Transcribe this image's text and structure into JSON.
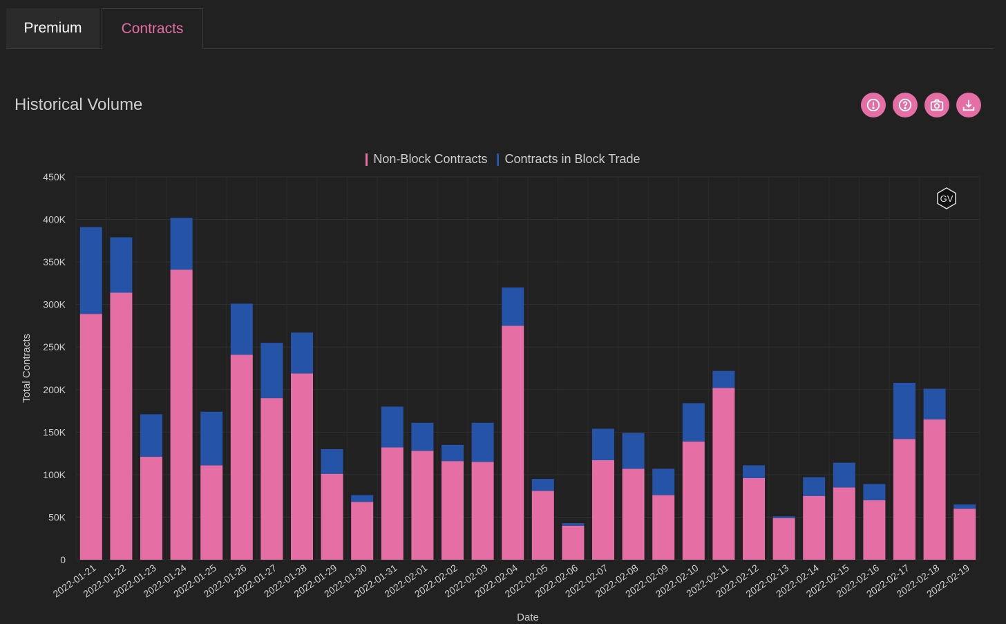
{
  "tabs": [
    {
      "label": "Premium"
    },
    {
      "label": "Contracts"
    }
  ],
  "header": {
    "title": "Historical Volume"
  },
  "actions": [
    {
      "icon": "alert-icon"
    },
    {
      "icon": "help-icon"
    },
    {
      "icon": "camera-icon"
    },
    {
      "icon": "download-icon"
    }
  ],
  "watermark": "GV",
  "colors": {
    "non_block": "#e56ea5",
    "block": "#2553a8",
    "accent": "#e56ea5",
    "background": "#212121"
  },
  "chart_data": {
    "type": "bar",
    "stacked": true,
    "xlabel": "Date",
    "ylabel": "Total Contracts",
    "ylim": [
      0,
      450000
    ],
    "yticks": [
      0,
      50000,
      100000,
      150000,
      200000,
      250000,
      300000,
      350000,
      400000,
      450000
    ],
    "ytick_labels": [
      "0",
      "50K",
      "100K",
      "150K",
      "200K",
      "250K",
      "300K",
      "350K",
      "400K",
      "450K"
    ],
    "grid": true,
    "legend_position": "top-center",
    "categories": [
      "2022-01-21",
      "2022-01-22",
      "2022-01-23",
      "2022-01-24",
      "2022-01-25",
      "2022-01-26",
      "2022-01-27",
      "2022-01-28",
      "2022-01-29",
      "2022-01-30",
      "2022-01-31",
      "2022-02-01",
      "2022-02-02",
      "2022-02-03",
      "2022-02-04",
      "2022-02-05",
      "2022-02-06",
      "2022-02-07",
      "2022-02-08",
      "2022-02-09",
      "2022-02-10",
      "2022-02-11",
      "2022-02-12",
      "2022-02-13",
      "2022-02-14",
      "2022-02-15",
      "2022-02-16",
      "2022-02-17",
      "2022-02-18",
      "2022-02-19"
    ],
    "series": [
      {
        "name": "Non-Block Contracts",
        "values": [
          289000,
          314000,
          121000,
          341000,
          111000,
          241000,
          190000,
          219000,
          101000,
          68000,
          132000,
          128000,
          116000,
          115000,
          275000,
          81000,
          40000,
          117000,
          107000,
          76000,
          139000,
          202000,
          96000,
          49000,
          75000,
          85000,
          70000,
          142000,
          165000,
          60000
        ]
      },
      {
        "name": "Contracts in Block Trade",
        "values": [
          102000,
          65000,
          50000,
          61000,
          63000,
          60000,
          65000,
          48000,
          29000,
          8000,
          48000,
          33000,
          19000,
          46000,
          45000,
          14000,
          3000,
          37000,
          42000,
          31000,
          45000,
          20000,
          15000,
          2000,
          22000,
          29000,
          19000,
          66000,
          36000,
          5000
        ]
      }
    ]
  }
}
